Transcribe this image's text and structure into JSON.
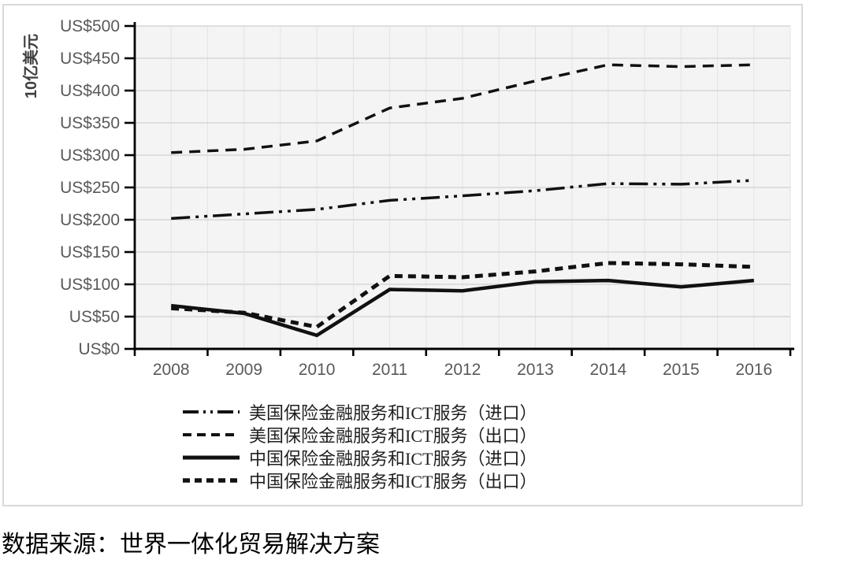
{
  "source_note": "数据来源：世界一体化贸易解决方案",
  "colors": {
    "line": "#111111",
    "axis": "#000000",
    "tick_label": "#595959",
    "grid_major": "#d7d7d7",
    "grid_minor": "#e3e3e3",
    "plot_background": "#f4f4f4",
    "frame_border": "#d9d9d9"
  },
  "chart_data": {
    "type": "line",
    "title": "",
    "xlabel": "",
    "ylabel": "10亿美元",
    "ylim": [
      0,
      500
    ],
    "y_tick_interval": 50,
    "y_tick_values": [
      0,
      50,
      100,
      150,
      200,
      250,
      300,
      350,
      400,
      450,
      500
    ],
    "y_tick_labels": [
      "US$0",
      "US$50",
      "US$100",
      "US$150",
      "US$200",
      "US$250",
      "US$300",
      "US$350",
      "US$400",
      "US$450",
      "US$500"
    ],
    "categories": [
      "2008",
      "2009",
      "2010",
      "2011",
      "2012",
      "2013",
      "2014",
      "2015",
      "2016"
    ],
    "grid": true,
    "legend_position": "bottom-left",
    "series": [
      {
        "name": "美国保险金融服务和ICT服务（进口）",
        "line_style": "dash-dot-dot",
        "values": [
          202,
          209,
          216,
          230,
          237,
          245,
          256,
          255,
          261
        ]
      },
      {
        "name": "美国保险金融服务和ICT服务（出口）",
        "line_style": "dashed",
        "values": [
          304,
          309,
          322,
          373,
          388,
          415,
          440,
          437,
          440
        ]
      },
      {
        "name": "中国保险金融服务和ICT服务（进口）",
        "line_style": "solid",
        "values": [
          67,
          55,
          21,
          92,
          90,
          104,
          106,
          96,
          106
        ]
      },
      {
        "name": "中国保险金融服务和ICT服务（出口）",
        "line_style": "dense-dashed",
        "values": [
          63,
          56,
          34,
          113,
          111,
          120,
          133,
          131,
          127
        ]
      }
    ]
  }
}
